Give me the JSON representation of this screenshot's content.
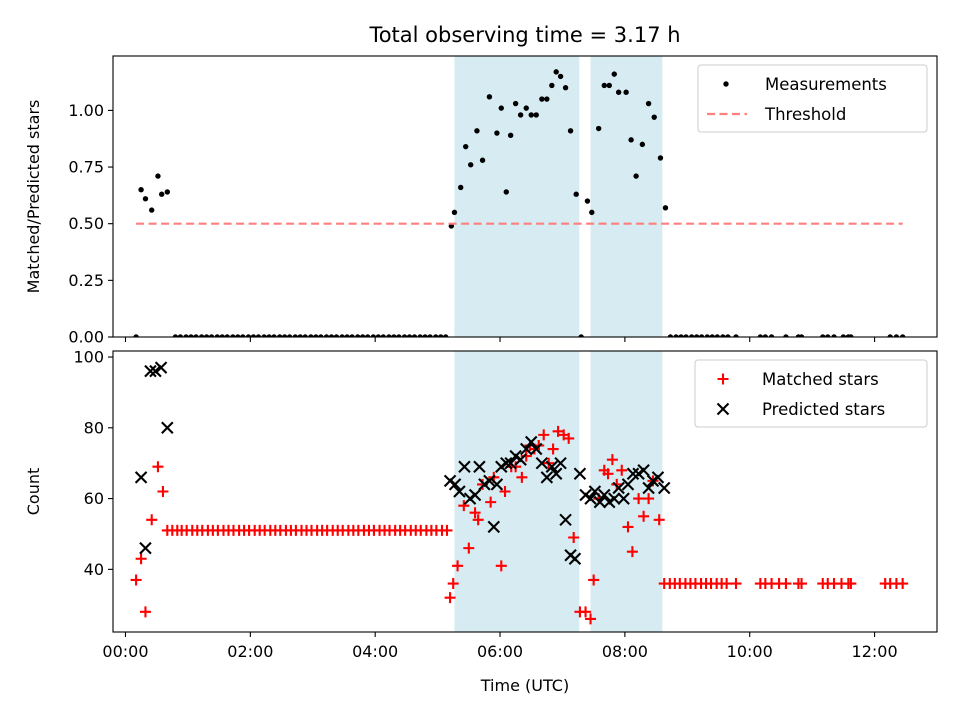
{
  "title": "Total observing time = 3.17 h",
  "chart_data": [
    {
      "type": "scatter",
      "panel": "top",
      "ylabel": "Matched/Predicted stars",
      "xlabel": "",
      "xlim_hours": [
        -0.2,
        13.0
      ],
      "ylim": [
        0,
        1.24
      ],
      "yticks": [
        0.0,
        0.25,
        0.5,
        0.75,
        1.0
      ],
      "ytick_labels": [
        "0.00",
        "0.25",
        "0.50",
        "0.75",
        "1.00"
      ],
      "legend_position": "top-right",
      "shaded_intervals_hours": [
        [
          5.27,
          7.27
        ],
        [
          7.45,
          8.6
        ]
      ],
      "shade_color": "#add8e6",
      "series": [
        {
          "name": "Measurements",
          "marker": "dot",
          "color": "#000000",
          "x": [
            0.17,
            0.25,
            0.32,
            0.42,
            0.52,
            0.58,
            0.67,
            0.8,
            0.88,
            0.97,
            1.05,
            1.13,
            1.22,
            1.3,
            1.38,
            1.47,
            1.55,
            1.63,
            1.72,
            1.8,
            1.88,
            1.97,
            2.05,
            2.13,
            2.22,
            2.3,
            2.38,
            2.47,
            2.55,
            2.63,
            2.72,
            2.8,
            2.88,
            2.97,
            3.05,
            3.13,
            3.22,
            3.3,
            3.38,
            3.47,
            3.55,
            3.63,
            3.72,
            3.8,
            3.88,
            3.97,
            4.05,
            4.13,
            4.22,
            4.3,
            4.38,
            4.47,
            4.55,
            4.63,
            4.72,
            4.8,
            4.88,
            4.97,
            5.05,
            5.13,
            5.22,
            5.27,
            5.37,
            5.45,
            5.53,
            5.63,
            5.72,
            5.83,
            5.95,
            6.02,
            6.1,
            6.17,
            6.25,
            6.33,
            6.42,
            6.5,
            6.58,
            6.67,
            6.75,
            6.83,
            6.9,
            6.97,
            7.05,
            7.13,
            7.22,
            7.3,
            7.4,
            7.47,
            7.58,
            7.67,
            7.75,
            7.83,
            7.9,
            8.02,
            8.1,
            8.18,
            8.28,
            8.38,
            8.47,
            8.57,
            8.65,
            8.73,
            8.82,
            8.9,
            8.98,
            9.07,
            9.15,
            9.23,
            9.32,
            9.4,
            9.48,
            9.57,
            9.65,
            9.78,
            10.17,
            10.25,
            10.35,
            10.58,
            10.78,
            10.83,
            11.17,
            11.25,
            11.35,
            11.5,
            11.58,
            11.62,
            12.25,
            12.35,
            12.45
          ],
          "y": [
            0,
            0.65,
            0.61,
            0.56,
            0.71,
            0.63,
            0.64,
            0,
            0,
            0,
            0,
            0,
            0,
            0,
            0,
            0,
            0,
            0,
            0,
            0,
            0,
            0,
            0,
            0,
            0,
            0,
            0,
            0,
            0,
            0,
            0,
            0,
            0,
            0,
            0,
            0,
            0,
            0,
            0,
            0,
            0,
            0,
            0,
            0,
            0,
            0,
            0,
            0,
            0,
            0,
            0,
            0,
            0,
            0,
            0,
            0,
            0,
            0,
            0,
            0,
            0.49,
            0.55,
            0.66,
            0.84,
            0.76,
            0.91,
            0.78,
            1.06,
            0.9,
            1.01,
            0.64,
            0.89,
            1.03,
            0.98,
            1.01,
            0.98,
            0.98,
            1.05,
            1.05,
            1.11,
            1.17,
            1.15,
            1.1,
            0.91,
            0.63,
            0,
            0.6,
            0.55,
            0.92,
            1.11,
            1.11,
            1.16,
            1.08,
            1.08,
            0.87,
            0.71,
            0.85,
            1.03,
            0.97,
            0.79,
            0.57,
            0,
            0,
            0,
            0,
            0,
            0,
            0,
            0,
            0,
            0,
            0,
            0,
            0,
            0,
            0,
            0,
            0,
            0,
            0,
            0,
            0,
            0,
            0,
            0,
            0,
            0,
            0,
            0
          ]
        },
        {
          "name": "Threshold",
          "marker": "dashed-line",
          "color": "#ff7f7f",
          "x": [
            0.17,
            12.45
          ],
          "y": [
            0.5,
            0.5
          ]
        }
      ]
    },
    {
      "type": "scatter",
      "panel": "bottom",
      "ylabel": "Count",
      "xlabel": "Time (UTC)",
      "xlim_hours": [
        -0.2,
        13.0
      ],
      "ylim": [
        22.3,
        101.7
      ],
      "yticks": [
        40,
        60,
        80,
        100
      ],
      "ytick_labels": [
        "40",
        "60",
        "80",
        "100"
      ],
      "xticks_hours": [
        0,
        2,
        4,
        6,
        8,
        10,
        12
      ],
      "xtick_labels": [
        "00:00",
        "02:00",
        "04:00",
        "06:00",
        "08:00",
        "10:00",
        "12:00"
      ],
      "legend_position": "top-right",
      "shaded_intervals_hours": [
        [
          5.27,
          7.27
        ],
        [
          7.45,
          8.6
        ]
      ],
      "shade_color": "#add8e6",
      "series": [
        {
          "name": "Matched stars",
          "marker": "plus",
          "color": "#ff0000",
          "x": [
            0.17,
            0.25,
            0.32,
            0.42,
            0.52,
            0.6,
            0.67,
            0.75,
            0.83,
            0.9,
            0.98,
            1.07,
            1.15,
            1.23,
            1.32,
            1.4,
            1.48,
            1.57,
            1.65,
            1.73,
            1.82,
            1.9,
            1.98,
            2.07,
            2.15,
            2.23,
            2.32,
            2.4,
            2.48,
            2.57,
            2.65,
            2.73,
            2.82,
            2.9,
            2.98,
            3.07,
            3.15,
            3.23,
            3.32,
            3.4,
            3.48,
            3.57,
            3.65,
            3.73,
            3.82,
            3.9,
            3.98,
            4.07,
            4.15,
            4.23,
            4.32,
            4.4,
            4.48,
            4.57,
            4.65,
            4.73,
            4.82,
            4.9,
            4.98,
            5.07,
            5.15,
            5.2,
            5.25,
            5.32,
            5.42,
            5.5,
            5.6,
            5.65,
            5.72,
            5.85,
            5.9,
            6.02,
            6.08,
            6.18,
            6.25,
            6.35,
            6.42,
            6.48,
            6.55,
            6.62,
            6.7,
            6.78,
            6.85,
            6.93,
            7.02,
            7.1,
            7.18,
            7.28,
            7.37,
            7.45,
            7.5,
            7.58,
            7.67,
            7.73,
            7.8,
            7.87,
            7.95,
            8.05,
            8.12,
            8.22,
            8.3,
            8.38,
            8.45,
            8.55,
            8.63,
            8.72,
            8.8,
            8.88,
            8.97,
            9.05,
            9.13,
            9.22,
            9.3,
            9.38,
            9.47,
            9.55,
            9.63,
            9.78,
            10.17,
            10.25,
            10.35,
            10.47,
            10.58,
            10.78,
            10.83,
            11.17,
            11.25,
            11.35,
            11.47,
            11.58,
            11.62,
            12.17,
            12.25,
            12.35,
            12.45
          ],
          "y": [
            37,
            43,
            28,
            54,
            69,
            62,
            51,
            51,
            51,
            51,
            51,
            51,
            51,
            51,
            51,
            51,
            51,
            51,
            51,
            51,
            51,
            51,
            51,
            51,
            51,
            51,
            51,
            51,
            51,
            51,
            51,
            51,
            51,
            51,
            51,
            51,
            51,
            51,
            51,
            51,
            51,
            51,
            51,
            51,
            51,
            51,
            51,
            51,
            51,
            51,
            51,
            51,
            51,
            51,
            51,
            51,
            51,
            51,
            51,
            51,
            51,
            32,
            36,
            41,
            58,
            46,
            56,
            54,
            64,
            59,
            66,
            41,
            62,
            69,
            69,
            66,
            72,
            75,
            74,
            75,
            78,
            70,
            74,
            79,
            78,
            77,
            49,
            28,
            28,
            26,
            37,
            60,
            68,
            67,
            71,
            64,
            68,
            52,
            45,
            60,
            55,
            60,
            65,
            54,
            36,
            36,
            36,
            36,
            36,
            36,
            36,
            36,
            36,
            36,
            36,
            36,
            36,
            36,
            36,
            36,
            36,
            36,
            36,
            36,
            36,
            36,
            36,
            36,
            36,
            36,
            36,
            36,
            36,
            36,
            36
          ]
        },
        {
          "name": "Predicted stars",
          "marker": "x",
          "color": "#000000",
          "x": [
            0.25,
            0.32,
            0.4,
            0.48,
            0.57,
            0.67,
            5.2,
            5.28,
            5.35,
            5.43,
            5.52,
            5.6,
            5.67,
            5.75,
            5.83,
            5.9,
            5.95,
            6.02,
            6.1,
            6.17,
            6.25,
            6.33,
            6.42,
            6.5,
            6.58,
            6.67,
            6.75,
            6.83,
            6.9,
            6.97,
            7.05,
            7.13,
            7.2,
            7.28,
            7.37,
            7.45,
            7.52,
            7.6,
            7.67,
            7.75,
            7.83,
            7.9,
            7.98,
            8.05,
            8.13,
            8.22,
            8.3,
            8.38,
            8.45,
            8.53,
            8.63
          ],
          "y": [
            66,
            46,
            96,
            96,
            97,
            80,
            65,
            64,
            62,
            69,
            60,
            61,
            69,
            64,
            65,
            52,
            64,
            69,
            70,
            70,
            72,
            71,
            74,
            76,
            74,
            70,
            66,
            69,
            67,
            70,
            54,
            44,
            43,
            67,
            61,
            60,
            62,
            59,
            61,
            59,
            60,
            63,
            60,
            64,
            67,
            67,
            68,
            63,
            65,
            66,
            63
          ]
        }
      ]
    }
  ]
}
